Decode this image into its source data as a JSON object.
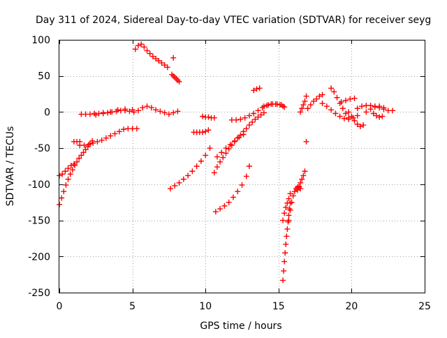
{
  "chart_data": {
    "type": "scatter",
    "title": "Day 311 of 2024, Sidereal Day-to-day VTEC variation (SDTVAR) for receiver seyg",
    "xlabel": "GPS time / hours",
    "ylabel": "SDTVAR / TECUs",
    "xlim": [
      0,
      25
    ],
    "ylim": [
      -250,
      100
    ],
    "x_ticks": [
      0,
      5,
      10,
      15,
      20,
      25
    ],
    "y_ticks": [
      -250,
      -200,
      -150,
      -100,
      -50,
      0,
      50,
      100
    ],
    "grid": true,
    "marker": "plus",
    "marker_color": "#ff0000",
    "series": [
      {
        "x": [
          0.0,
          0.2,
          0.4,
          0.6,
          0.8,
          1.0
        ],
        "y": [
          -88,
          -86,
          -82,
          -78,
          -74,
          -72
        ]
      },
      {
        "x": [
          0.0,
          0.15,
          0.3,
          0.45,
          0.6,
          0.75,
          0.9,
          1.05,
          1.2,
          1.35,
          1.5,
          1.65,
          1.8,
          1.95,
          2.1,
          2.25
        ],
        "y": [
          -128,
          -119,
          -110,
          -101,
          -93,
          -86,
          -80,
          -74,
          -69,
          -64,
          -60,
          -56,
          -52,
          -48,
          -44,
          -40
        ]
      },
      {
        "x": [
          1.0,
          1.2,
          1.4
        ],
        "y": [
          -41,
          -41,
          -41
        ]
      },
      {
        "x": [
          1.4,
          1.7,
          2.0,
          2.3,
          2.6,
          2.9,
          3.2,
          3.5,
          3.8,
          4.1,
          4.4,
          4.7,
          5.0,
          5.3
        ],
        "y": [
          -46,
          -46,
          -45,
          -43,
          -41,
          -39,
          -36,
          -33,
          -30,
          -27,
          -24,
          -23,
          -23,
          -23
        ]
      },
      {
        "x": [
          1.5,
          1.8,
          2.1,
          2.4,
          2.7,
          3.0,
          3.3,
          3.6,
          3.9,
          4.2,
          4.5,
          4.8,
          5.1,
          5.4,
          5.7,
          6.0,
          6.3,
          6.6,
          6.9,
          7.2,
          7.5,
          7.8,
          8.1
        ],
        "y": [
          -3,
          -3,
          -3,
          -2,
          -2,
          -1,
          -1,
          0,
          1,
          2,
          2,
          1,
          0,
          2,
          6,
          8,
          6,
          3,
          1,
          -1,
          -3,
          -1,
          1
        ]
      },
      {
        "x": [
          2.5,
          3.0,
          3.5,
          4.0,
          4.5,
          5.0
        ],
        "y": [
          -4,
          -2,
          0,
          3,
          4,
          3
        ]
      },
      {
        "x": [
          5.2,
          5.4,
          5.6,
          5.8,
          6.0,
          6.2,
          6.4,
          6.6,
          6.8,
          7.0,
          7.2,
          7.4
        ],
        "y": [
          87,
          92,
          94,
          90,
          85,
          81,
          77,
          74,
          71,
          68,
          65,
          62
        ]
      },
      {
        "x": [
          7.8
        ],
        "y": [
          75
        ]
      },
      {
        "x": [
          7.7,
          7.8,
          7.9,
          8.0,
          8.1,
          8.2
        ],
        "y": [
          52,
          50,
          48,
          46,
          44,
          42
        ]
      },
      {
        "x": [
          7.6,
          7.9,
          8.2,
          8.5,
          8.8,
          9.1,
          9.4,
          9.7,
          10.0,
          10.3
        ],
        "y": [
          -106,
          -102,
          -98,
          -93,
          -88,
          -82,
          -75,
          -68,
          -60,
          -50
        ]
      },
      {
        "x": [
          9.2,
          9.4,
          9.6,
          9.8,
          10.0,
          10.2
        ],
        "y": [
          -28,
          -28,
          -28,
          -28,
          -27,
          -25
        ]
      },
      {
        "x": [
          9.8,
          10.0,
          10.2,
          10.4,
          10.6
        ],
        "y": [
          -6,
          -7,
          -7,
          -8,
          -8
        ]
      },
      {
        "x": [
          10.7,
          11.0,
          11.3,
          11.6,
          11.9,
          12.2,
          12.5,
          12.8,
          13.0
        ],
        "y": [
          -138,
          -134,
          -130,
          -125,
          -118,
          -110,
          -101,
          -89,
          -75
        ]
      },
      {
        "x": [
          10.6,
          10.8,
          11.0,
          11.2,
          11.4,
          11.6,
          11.8,
          12.0,
          12.2,
          12.4,
          12.6,
          12.8,
          13.0,
          13.2,
          13.4,
          13.6,
          13.8,
          14.0
        ],
        "y": [
          -84,
          -76,
          -69,
          -63,
          -57,
          -51,
          -46,
          -41,
          -36,
          -32,
          -27,
          -23,
          -18,
          -14,
          -10,
          -7,
          -4,
          -1
        ]
      },
      {
        "x": [
          10.8,
          11.1,
          11.4,
          11.7,
          12.0,
          12.3,
          12.6
        ],
        "y": [
          -62,
          -56,
          -50,
          -45,
          -40,
          -35,
          -31
        ]
      },
      {
        "x": [
          11.8,
          12.1,
          12.4,
          12.7,
          13.0,
          13.3,
          13.6,
          13.9,
          14.2,
          14.5,
          14.8,
          15.1,
          15.3
        ],
        "y": [
          -11,
          -11,
          -10,
          -8,
          -5,
          -2,
          2,
          6,
          9,
          11,
          11,
          10,
          8
        ]
      },
      {
        "x": [
          13.3,
          13.5,
          13.7
        ],
        "y": [
          30,
          32,
          33
        ]
      },
      {
        "x": [
          14.0,
          14.3,
          14.6,
          14.9,
          15.2,
          15.4
        ],
        "y": [
          8,
          10,
          11,
          11,
          10,
          7
        ]
      },
      {
        "x": [
          15.3,
          15.35,
          15.4,
          15.45,
          15.5,
          15.55,
          15.6,
          15.65,
          15.7,
          15.75,
          15.8
        ],
        "y": [
          -233,
          -220,
          -207,
          -195,
          -183,
          -172,
          -162,
          -152,
          -143,
          -134,
          -126
        ]
      },
      {
        "x": [
          15.3,
          15.4,
          15.5,
          15.6,
          15.7,
          15.8
        ],
        "y": [
          -150,
          -140,
          -132,
          -126,
          -120,
          -113
        ]
      },
      {
        "x": [
          15.7,
          15.8,
          15.9,
          16.0,
          16.1,
          16.2,
          16.3,
          16.4,
          16.5
        ],
        "y": [
          -150,
          -136,
          -125,
          -116,
          -110,
          -106,
          -104,
          -104,
          -106
        ]
      },
      {
        "x": [
          16.3,
          16.4,
          16.5,
          16.6,
          16.7,
          16.8
        ],
        "y": [
          -108,
          -103,
          -98,
          -93,
          -88,
          -82
        ]
      },
      {
        "x": [
          16.9
        ],
        "y": [
          -41
        ]
      },
      {
        "x": [
          16.5,
          16.6,
          16.7,
          16.8,
          16.9
        ],
        "y": [
          0,
          5,
          10,
          15,
          22
        ]
      },
      {
        "x": [
          17.0,
          17.2,
          17.4,
          17.6,
          17.8,
          18.0
        ],
        "y": [
          5,
          10,
          15,
          18,
          22,
          24
        ]
      },
      {
        "x": [
          18.6,
          18.8,
          19.0,
          19.2,
          19.4,
          19.6,
          19.8
        ],
        "y": [
          33,
          28,
          20,
          12,
          5,
          -2,
          -8
        ]
      },
      {
        "x": [
          18.0,
          18.3,
          18.6,
          18.9,
          19.2,
          19.5,
          19.8,
          20.1,
          20.4
        ],
        "y": [
          12,
          8,
          3,
          -2,
          -6,
          -9,
          -10,
          -8,
          -5
        ]
      },
      {
        "x": [
          19.3,
          19.6,
          19.9,
          20.2
        ],
        "y": [
          14,
          16,
          18,
          19
        ]
      },
      {
        "x": [
          19.8,
          20.0,
          20.2,
          20.4,
          20.6,
          20.8
        ],
        "y": [
          0,
          -6,
          -12,
          -17,
          -20,
          -18
        ]
      },
      {
        "x": [
          20.4,
          20.7,
          21.0,
          21.3,
          21.6,
          21.9,
          22.2,
          22.5,
          22.8
        ],
        "y": [
          5,
          8,
          9,
          9,
          8,
          6,
          4,
          2,
          2
        ]
      },
      {
        "x": [
          21.0,
          21.3,
          21.6,
          21.9,
          22.2
        ],
        "y": [
          0,
          4,
          7,
          8,
          6
        ]
      },
      {
        "x": [
          21.5,
          21.7,
          21.9,
          22.1
        ],
        "y": [
          -2,
          -5,
          -7,
          -6
        ]
      }
    ]
  }
}
